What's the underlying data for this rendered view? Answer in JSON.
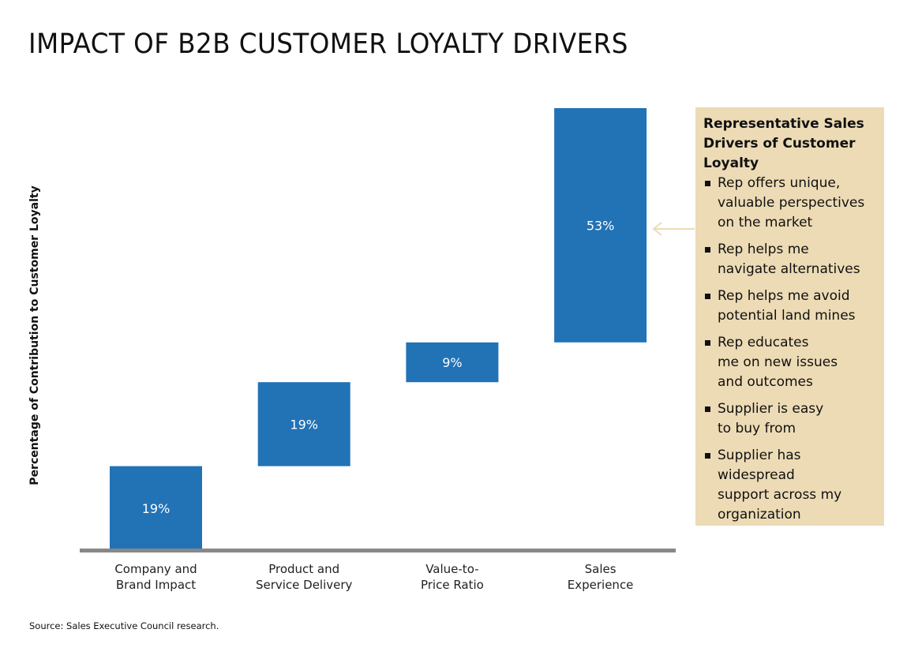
{
  "title": "IMPACT OF B2B CUSTOMER LOYALTY DRIVERS",
  "chart_data": {
    "type": "waterfall",
    "title": "IMPACT OF B2B CUSTOMER LOYALTY DRIVERS",
    "ylabel": "Percentage of Contribution to Customer Loyalty",
    "xlabel": "",
    "categories": [
      "Company and\nBrand Impact",
      "Product and\nService Delivery",
      "Value-to-\nPrice Ratio",
      "Sales\nExperience"
    ],
    "values": [
      19,
      19,
      9,
      53
    ],
    "data_labels": [
      "19%",
      "19%",
      "9%",
      "53%"
    ],
    "ylim": [
      0,
      100
    ],
    "grid": false,
    "bar_color": "#2272b6",
    "axis_color": "#888888"
  },
  "callout": {
    "title": "Representative Sales\nDrivers of Customer\nLoyalty",
    "items": [
      "Rep offers unique,\nvaluable perspectives\non the market",
      "Rep helps me\nnavigate alternatives",
      "Rep helps me avoid\npotential land mines",
      "Rep educates\nme on new issues\nand outcomes",
      "Supplier is easy\nto buy from",
      "Supplier has\nwidespread\nsupport across my\norganization"
    ],
    "background": "#ecdbb5",
    "arrow_color": "#ecdbb5"
  },
  "source": "Source: Sales Executive Council research."
}
